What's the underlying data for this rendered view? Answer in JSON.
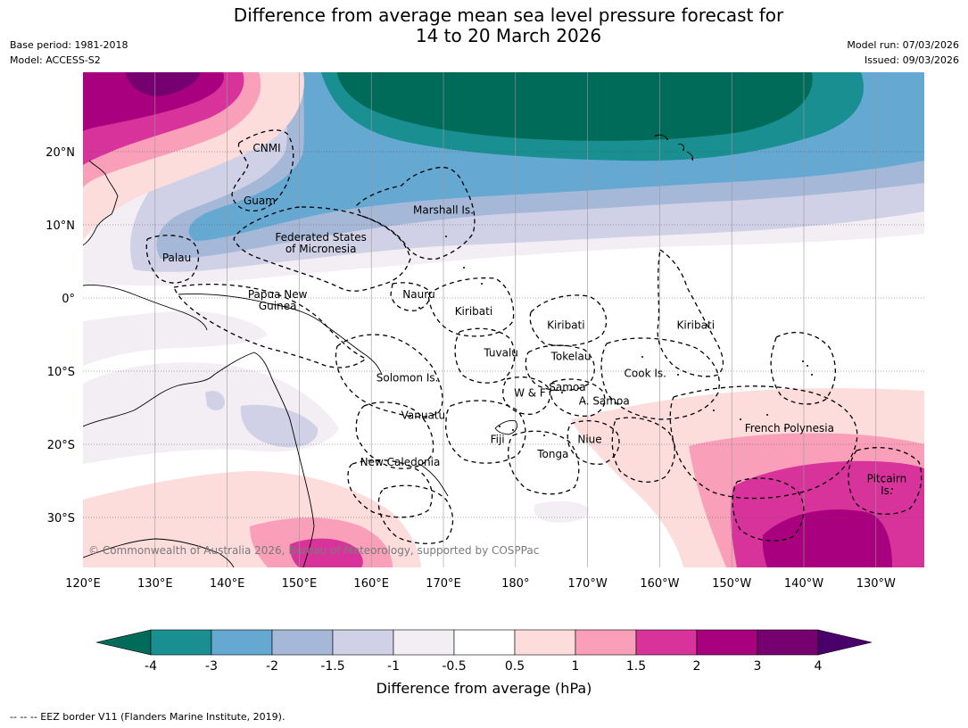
{
  "title_line1": "Difference from average mean sea level pressure forecast for",
  "title_line2": "14 to 20 March 2026",
  "meta_left": [
    "Base period: 1981-2018",
    "Model: ACCESS-S2"
  ],
  "meta_right": [
    "Model run: 07/03/2026",
    "Issued: 09/03/2026"
  ],
  "lat_labels": [
    {
      "label": "20°N",
      "lat": 20
    },
    {
      "label": "10°N",
      "lat": 10
    },
    {
      "label": "0°",
      "lat": 0
    },
    {
      "label": "10°S",
      "lat": -10
    },
    {
      "label": "20°S",
      "lat": -20
    },
    {
      "label": "30°S",
      "lat": -30
    }
  ],
  "lon_labels": [
    {
      "label": "120°E",
      "lon": 120
    },
    {
      "label": "130°E",
      "lon": 130
    },
    {
      "label": "140°E",
      "lon": 140
    },
    {
      "label": "150°E",
      "lon": 150
    },
    {
      "label": "160°E",
      "lon": 160
    },
    {
      "label": "170°E",
      "lon": 170
    },
    {
      "label": "180°",
      "lon": 180
    },
    {
      "label": "170°W",
      "lon": 190
    },
    {
      "label": "160°W",
      "lon": 200
    },
    {
      "label": "150°W",
      "lon": 210
    },
    {
      "label": "140°W",
      "lon": 220
    },
    {
      "label": "130°W",
      "lon": 230
    }
  ],
  "regions": [
    {
      "label": "CNMI",
      "lon": 145.5,
      "lat": 20
    },
    {
      "label": "Guam",
      "lon": 144.5,
      "lat": 12.8
    },
    {
      "label": "Marshall Is.",
      "lon": 170,
      "lat": 11.5
    },
    {
      "label": "Federated States",
      "lon": 153,
      "lat": 7.8
    },
    {
      "label": "of Micronesia",
      "lon": 153,
      "lat": 6.2
    },
    {
      "label": "Palau",
      "lon": 133,
      "lat": 5
    },
    {
      "label": "Papua New",
      "lon": 147,
      "lat": 0
    },
    {
      "label": "Guinea",
      "lon": 147,
      "lat": -1.6
    },
    {
      "label": "Nauru",
      "lon": 166.6,
      "lat": 0
    },
    {
      "label": "Kiribati",
      "lon": 174.2,
      "lat": -2.3
    },
    {
      "label": "Kiribati",
      "lon": 187,
      "lat": -4.2
    },
    {
      "label": "Kiribati",
      "lon": 205,
      "lat": -4.2
    },
    {
      "label": "Tuvalu",
      "lon": 178,
      "lat": -8
    },
    {
      "label": "Tokelau",
      "lon": 187.7,
      "lat": -8.5
    },
    {
      "label": "Cook Is.",
      "lon": 198,
      "lat": -10.8
    },
    {
      "label": "Solomon Is.",
      "lon": 165,
      "lat": -11.4
    },
    {
      "label": "W & F",
      "lon": 182,
      "lat": -13.5
    },
    {
      "label": "Samoa",
      "lon": 187.2,
      "lat": -12.7
    },
    {
      "label": "A. Samoa",
      "lon": 192.3,
      "lat": -14.6
    },
    {
      "label": "Vanuatu",
      "lon": 167.2,
      "lat": -16.5
    },
    {
      "label": "Fiji",
      "lon": 177.5,
      "lat": -19.8
    },
    {
      "label": "Niue",
      "lon": 190.3,
      "lat": -19.8
    },
    {
      "label": "French Polynesia",
      "lon": 218,
      "lat": -18.3
    },
    {
      "label": "Tonga",
      "lon": 185.2,
      "lat": -21.8
    },
    {
      "label": "New Caledonia",
      "lon": 164,
      "lat": -22.9
    },
    {
      "label": "Pitcairn",
      "lon": 231.5,
      "lat": -25.2
    },
    {
      "label": "Is.",
      "lon": 231.5,
      "lat": -26.8
    }
  ],
  "copyright": "© Commonwealth of Australia 2026, Bureau of Meteorology, supported by COSPPac",
  "colorbar": {
    "levels": [
      -4,
      -3,
      -2,
      -1.5,
      -1,
      -0.5,
      0.5,
      1,
      1.5,
      2,
      3,
      4
    ],
    "tick_labels": [
      "-4",
      "-3",
      "-2",
      "-1.5",
      "-1",
      "-0.5",
      "0.5",
      "1",
      "1.5",
      "2",
      "3",
      "4"
    ],
    "colors": [
      "#1a8f91",
      "#65a9d3",
      "#a5b8d8",
      "#d0d0e6",
      "#f2eef4",
      "#ffffff",
      "#fddcdc",
      "#f99fb9",
      "#d8339b",
      "#a8007e",
      "#760070"
    ],
    "low_extend_color": "#006b59",
    "high_extend_color": "#4a006a",
    "label": "Difference from average (hPa)"
  },
  "footer": "--  --  -- EEZ border V11 (Flanders Marine Institute, 2019).",
  "colors": {
    "very_low": "#006b59",
    "low3": "#1a8f91",
    "low2": "#65a9d3",
    "low15": "#a5b8d8",
    "low1": "#d0d0e6",
    "low05": "#f2eef4",
    "high05": "#fddcdc",
    "high1": "#f99fb9",
    "high15": "#d8339b",
    "high2": "#a8007e",
    "high3": "#760070"
  }
}
